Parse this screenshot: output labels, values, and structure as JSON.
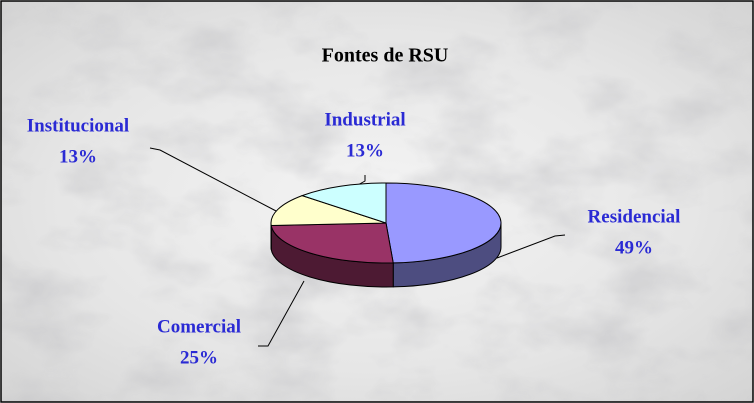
{
  "chart_data": {
    "type": "pie3d",
    "title": "Fontes de RSU",
    "categories": [
      "Residencial",
      "Comercial",
      "Institucional",
      "Industrial"
    ],
    "values": [
      49,
      25,
      13,
      13
    ],
    "value_labels": [
      "49%",
      "25%",
      "13%",
      "13%"
    ],
    "colors": [
      "#9999ff",
      "#993366",
      "#ffffcc",
      "#ccffff"
    ]
  }
}
